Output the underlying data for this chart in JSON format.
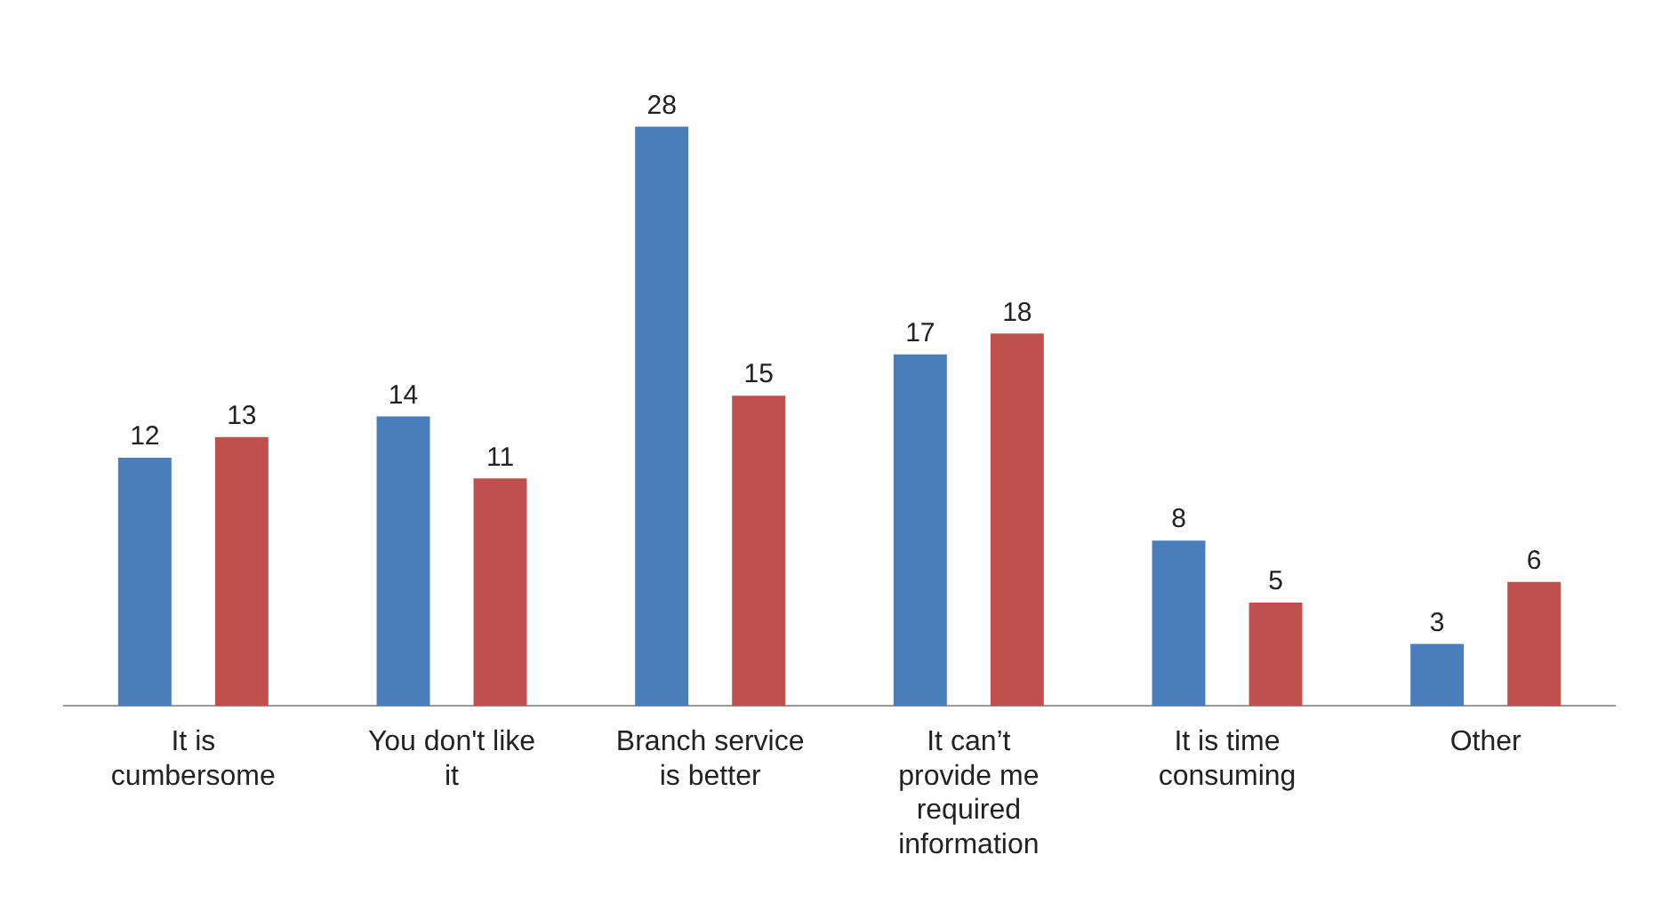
{
  "chart_data": {
    "type": "bar",
    "categories": [
      "It is cumbersome",
      "You don't like it",
      "Branch service is better",
      "It can’t provide me required information",
      "It is time consuming",
      "Other"
    ],
    "series": [
      {
        "color": "#4a7ebb",
        "values": [
          12,
          14,
          28,
          17,
          8,
          3
        ]
      },
      {
        "color": "#c0504d",
        "values": [
          13,
          11,
          15,
          18,
          5,
          6
        ]
      }
    ],
    "data_labels": true,
    "relative": false
  }
}
